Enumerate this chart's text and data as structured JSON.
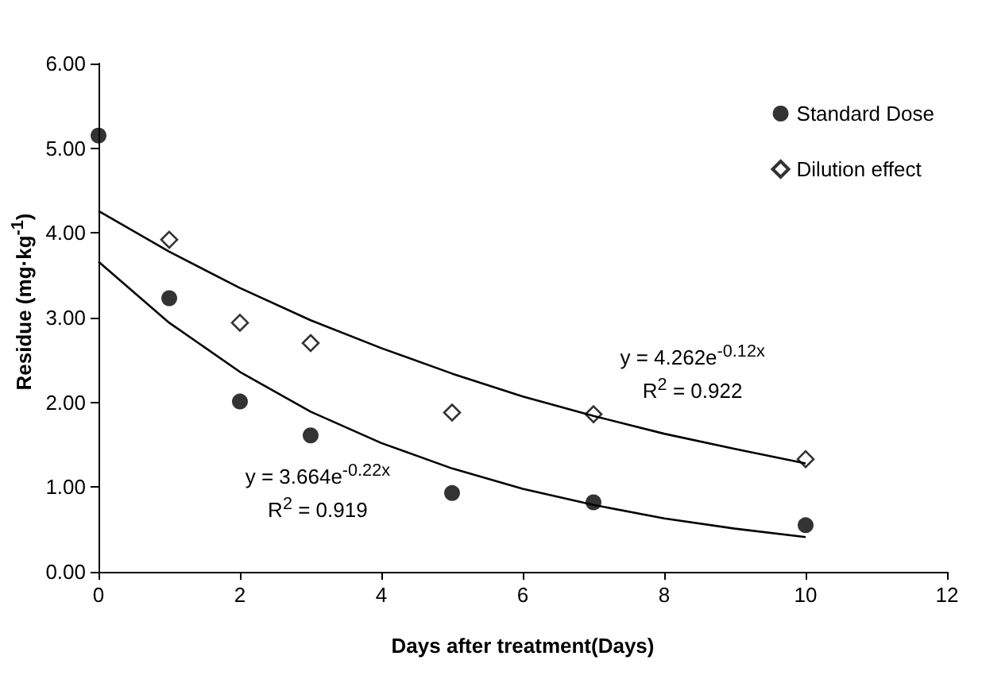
{
  "chart_data": {
    "type": "scatter",
    "xlabel": "Days after treatment(Days)",
    "ylabel": "Residue (mg·kg$^{-1}$)",
    "xlim": [
      0,
      12
    ],
    "xticks": [
      0,
      2,
      4,
      6,
      8,
      10,
      12
    ],
    "ylim": [
      0,
      6
    ],
    "yticks": [
      {
        "value": 0,
        "label": "0.00"
      },
      {
        "value": 1,
        "label": "1.00"
      },
      {
        "value": 2,
        "label": "2.00"
      },
      {
        "value": 3,
        "label": "3.00"
      },
      {
        "value": 4,
        "label": "4.00"
      },
      {
        "value": 5,
        "label": "5.00"
      },
      {
        "value": 6,
        "label": "6.00"
      }
    ],
    "legend": "top right",
    "grid": false,
    "series": [
      {
        "name": "Standard Dose",
        "color": "#000000",
        "marker": "circle",
        "x": [
          0,
          1,
          2,
          3,
          5,
          7,
          10
        ],
        "values": [
          5.15,
          3.23,
          2.01,
          1.61,
          0.93,
          0.82,
          0.55
        ]
      },
      {
        "name": "Dilution effect",
        "color": "#000000",
        "marker": "diamond",
        "x": [
          1,
          2,
          3,
          5,
          7,
          10
        ],
        "values": [
          3.92,
          2.94,
          2.7,
          1.88,
          1.86,
          1.33
        ]
      },
      {
        "type": "line",
        "color": "#000000",
        "marker": "none",
        "x": [
          0,
          1,
          2,
          3,
          4,
          5,
          6,
          7,
          8,
          9,
          10
        ],
        "values": [
          4.26,
          3.78,
          3.35,
          2.97,
          2.64,
          2.34,
          2.07,
          1.84,
          1.63,
          1.45,
          1.28
        ]
      },
      {
        "type": "line",
        "color": "#000000",
        "marker": "none",
        "x": [
          0,
          1,
          2,
          3,
          4,
          5,
          6,
          7,
          8,
          9,
          10
        ],
        "values": [
          3.66,
          2.94,
          2.36,
          1.89,
          1.52,
          1.22,
          0.98,
          0.79,
          0.63,
          0.51,
          0.41
        ]
      }
    ],
    "annotations": [
      "y = 4.262e$^{-0.12x}$",
      "R$^{2}$ = 0.922",
      "y = 3.664e$^{-0.22x}$",
      "R$^{2}$ = 0.919"
    ]
  }
}
